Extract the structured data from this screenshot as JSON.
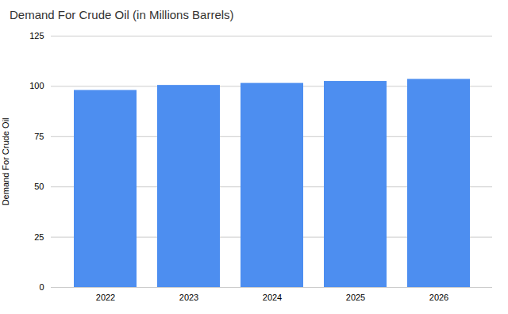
{
  "chart_data": {
    "type": "bar",
    "title": "Demand For Crude Oil (in Millions Barrels)",
    "ylabel": "Demand For Crude Oil",
    "categories": [
      "2022",
      "2023",
      "2024",
      "2025",
      "2026"
    ],
    "values": [
      98.0,
      100.5,
      101.5,
      102.5,
      103.5
    ],
    "color": "#4d8ef0",
    "ylim": [
      0,
      125
    ],
    "yticks": [
      0,
      25,
      50,
      75,
      100,
      125
    ],
    "grid": true
  }
}
